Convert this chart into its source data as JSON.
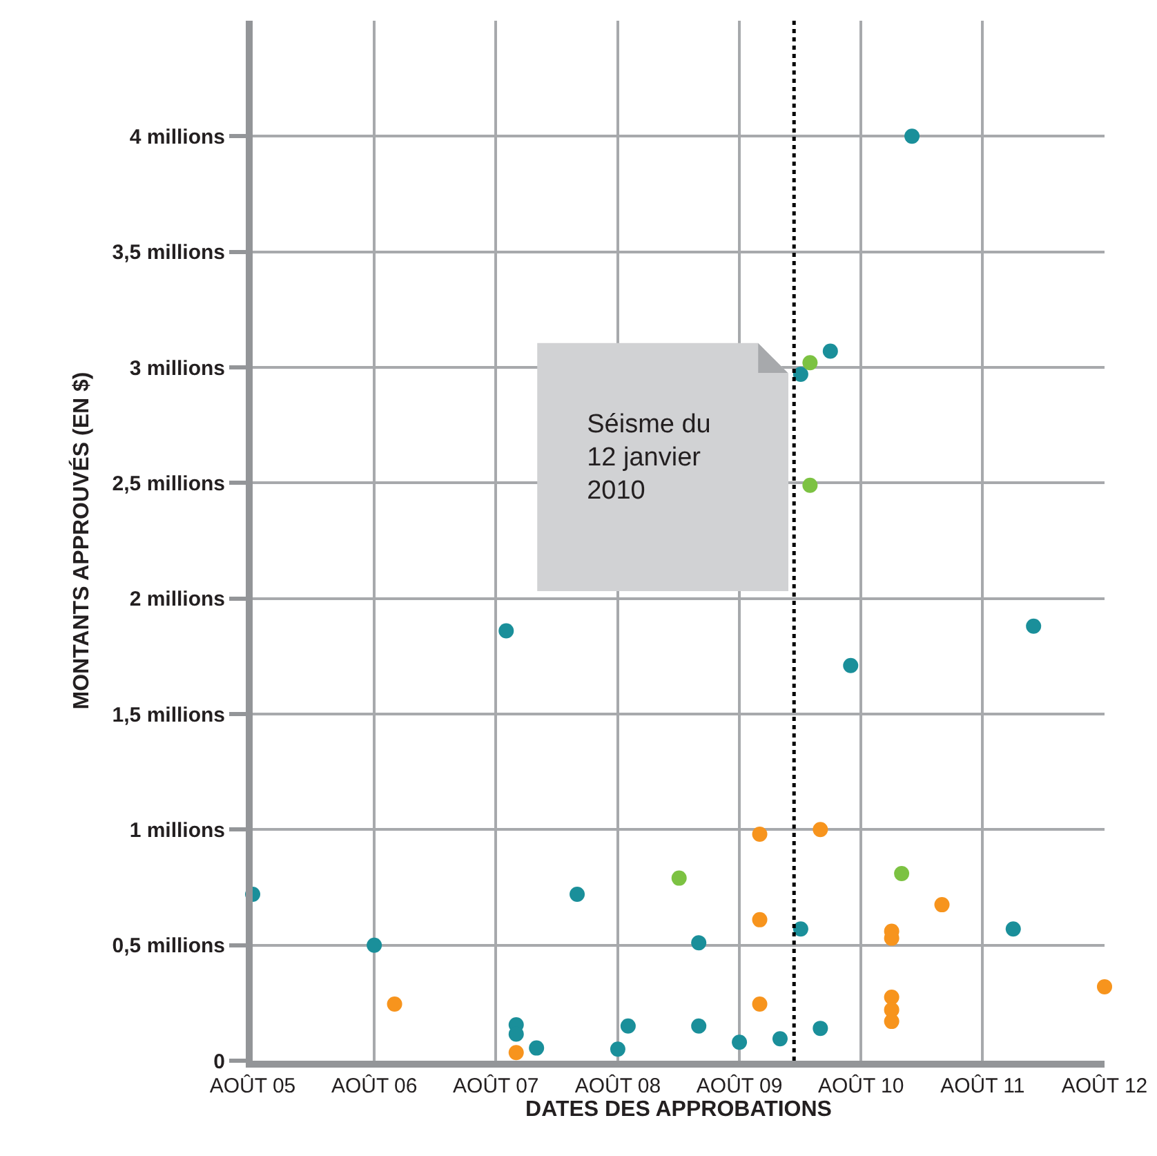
{
  "chart_data": {
    "type": "scatter",
    "xlabel": "DATES DES APPROBATIONS",
    "ylabel": "MONTANTS APPROUVÉS (EN $)",
    "xlim": [
      "2005-08",
      "2012-08"
    ],
    "xticks": [
      {
        "value": "2005-08",
        "label": "AOÛT 05"
      },
      {
        "value": "2006-08",
        "label": "AOÛT 06"
      },
      {
        "value": "2007-08",
        "label": "AOÛT 07"
      },
      {
        "value": "2008-08",
        "label": "AOÛT 08"
      },
      {
        "value": "2009-08",
        "label": "AOÛT 09"
      },
      {
        "value": "2010-08",
        "label": "AOÛT 10"
      },
      {
        "value": "2011-08",
        "label": "AOÛT 11"
      },
      {
        "value": "2012-08",
        "label": "AOÛT 12"
      }
    ],
    "ylim": [
      0,
      4500000
    ],
    "yticks": [
      {
        "value": 0,
        "label": "0"
      },
      {
        "value": 500000,
        "label": "0,5 millions"
      },
      {
        "value": 1000000,
        "label": "1 millions"
      },
      {
        "value": 1500000,
        "label": "1,5 millions"
      },
      {
        "value": 2000000,
        "label": "2 millions"
      },
      {
        "value": 2500000,
        "label": "2,5 millions"
      },
      {
        "value": 3000000,
        "label": "3 millions"
      },
      {
        "value": 3500000,
        "label": "3,5 millions"
      },
      {
        "value": 4000000,
        "label": "4 millions"
      }
    ],
    "grid": true,
    "marker": "circle",
    "series": [
      {
        "color": "#1a8f9a",
        "x": [
          "2005-08",
          "2006-08",
          "2007-09",
          "2007-10",
          "2007-10",
          "2007-12",
          "2008-04",
          "2008-08",
          "2008-09",
          "2009-04",
          "2009-04",
          "2009-08",
          "2009-12",
          "2010-02",
          "2010-02",
          "2010-04",
          "2010-05",
          "2010-07",
          "2011-01",
          "2011-11",
          "2012-01"
        ],
        "values": [
          720000,
          500000,
          1860000,
          155000,
          115000,
          55000,
          720000,
          50000,
          150000,
          510000,
          150000,
          80000,
          95000,
          570000,
          2970000,
          140000,
          3070000,
          1710000,
          4000000,
          570000,
          1880000
        ]
      },
      {
        "color": "#f7941d",
        "x": [
          "2006-10",
          "2007-10",
          "2009-10",
          "2009-10",
          "2009-10",
          "2010-04",
          "2010-11",
          "2010-11",
          "2010-11",
          "2010-11",
          "2010-11",
          "2011-04",
          "2012-08"
        ],
        "values": [
          245000,
          35000,
          980000,
          610000,
          245000,
          1000000,
          560000,
          530000,
          275000,
          220000,
          170000,
          675000,
          320000
        ]
      },
      {
        "color": "#7cc242",
        "x": [
          "2009-02",
          "2010-03",
          "2010-03",
          "2010-12"
        ],
        "values": [
          790000,
          3020000,
          2490000,
          810000
        ]
      }
    ],
    "ref_lines": [
      {
        "axis": "x",
        "value": "2010-01-12",
        "label": "Séisme du\n12 janvier\n2010",
        "line_style": "dotted",
        "color": "#000000"
      }
    ]
  }
}
